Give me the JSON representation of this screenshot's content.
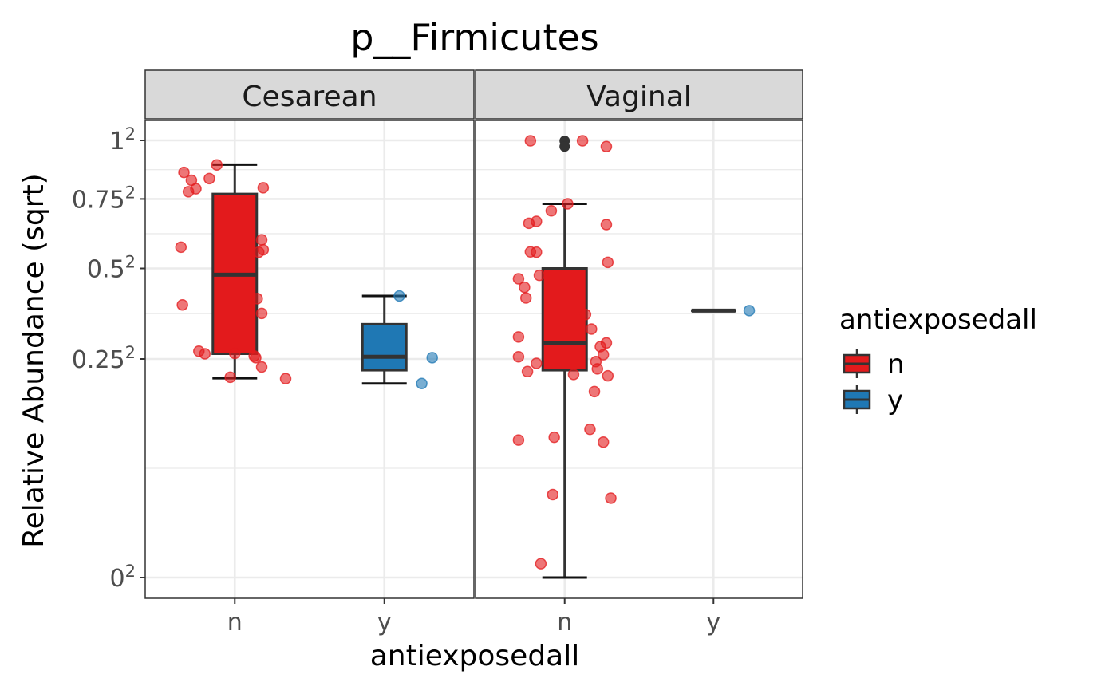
{
  "chart_data": {
    "type": "box",
    "title": "p__Firmicutes",
    "xlabel": "antiexposedall",
    "ylabel": "Relative Abundance (sqrt)",
    "y_scale": "sqrt",
    "ylim": [
      0,
      1.0
    ],
    "grid": true,
    "y_ticks": [
      {
        "value": 0,
        "base": "0",
        "exp": "2"
      },
      {
        "value": 0.25,
        "base": "0.25",
        "exp": "2"
      },
      {
        "value": 0.5,
        "base": "0.5",
        "exp": "2"
      },
      {
        "value": 0.75,
        "base": "0.75",
        "exp": "2"
      },
      {
        "value": 1.0,
        "base": "1",
        "exp": "2"
      }
    ],
    "categories": [
      "n",
      "y"
    ],
    "colors": {
      "n": "#e31a1c",
      "y": "#1f78b4"
    },
    "legend": {
      "title": "antiexposedall",
      "placement": "right",
      "items": [
        "n",
        "y"
      ]
    },
    "facets": [
      {
        "label": "Cesarean",
        "boxes": [
          {
            "category": "n",
            "min": 0.208,
            "q1": 0.262,
            "median": 0.48,
            "q3": 0.77,
            "max": 0.892,
            "outliers": []
          },
          {
            "category": "y",
            "min": 0.197,
            "q1": 0.225,
            "median": 0.255,
            "q3": 0.336,
            "max": 0.415,
            "outliers": []
          }
        ],
        "points": [
          {
            "category": "n",
            "x": 0.88,
            "y": 0.891
          },
          {
            "category": "n",
            "x": 0.66,
            "y": 0.859
          },
          {
            "category": "n",
            "x": 0.83,
            "y": 0.833
          },
          {
            "category": "n",
            "x": 0.71,
            "y": 0.826
          },
          {
            "category": "n",
            "x": 1.19,
            "y": 0.795
          },
          {
            "category": "n",
            "x": 0.74,
            "y": 0.791
          },
          {
            "category": "n",
            "x": 0.69,
            "y": 0.779
          },
          {
            "category": "n",
            "x": 0.64,
            "y": 0.571
          },
          {
            "category": "n",
            "x": 1.18,
            "y": 0.597
          },
          {
            "category": "n",
            "x": 1.19,
            "y": 0.562
          },
          {
            "category": "n",
            "x": 1.16,
            "y": 0.554
          },
          {
            "category": "n",
            "x": 1.15,
            "y": 0.407
          },
          {
            "category": "n",
            "x": 0.65,
            "y": 0.389
          },
          {
            "category": "n",
            "x": 1.18,
            "y": 0.365
          },
          {
            "category": "n",
            "x": 0.76,
            "y": 0.268
          },
          {
            "category": "n",
            "x": 0.8,
            "y": 0.262
          },
          {
            "category": "n",
            "x": 1.0,
            "y": 0.263
          },
          {
            "category": "n",
            "x": 1.13,
            "y": 0.257
          },
          {
            "category": "n",
            "x": 1.14,
            "y": 0.253
          },
          {
            "category": "n",
            "x": 1.18,
            "y": 0.232
          },
          {
            "category": "n",
            "x": 0.97,
            "y": 0.21
          },
          {
            "category": "n",
            "x": 1.34,
            "y": 0.207
          },
          {
            "category": "y",
            "x": 2.1,
            "y": 0.415
          },
          {
            "category": "y",
            "x": 2.32,
            "y": 0.253
          },
          {
            "category": "y",
            "x": 2.25,
            "y": 0.197
          }
        ]
      },
      {
        "label": "Vaginal",
        "boxes": [
          {
            "category": "n",
            "min": 0.0,
            "q1": 0.225,
            "median": 0.288,
            "q3": 0.5,
            "max": 0.731,
            "outliers": [
              0.998,
              0.972
            ]
          },
          {
            "category": "y",
            "min": 0.373,
            "q1": 0.373,
            "median": 0.373,
            "q3": 0.373,
            "max": 0.373,
            "outliers": []
          }
        ],
        "points": [
          {
            "category": "n",
            "x": 0.77,
            "y": 0.998
          },
          {
            "category": "n",
            "x": 1.12,
            "y": 0.998
          },
          {
            "category": "n",
            "x": 1.28,
            "y": 0.972
          },
          {
            "category": "n",
            "x": 1.02,
            "y": 0.731
          },
          {
            "category": "n",
            "x": 0.91,
            "y": 0.704
          },
          {
            "category": "n",
            "x": 0.81,
            "y": 0.664
          },
          {
            "category": "n",
            "x": 0.76,
            "y": 0.657
          },
          {
            "category": "n",
            "x": 1.28,
            "y": 0.652
          },
          {
            "category": "n",
            "x": 0.77,
            "y": 0.555
          },
          {
            "category": "n",
            "x": 0.81,
            "y": 0.554
          },
          {
            "category": "n",
            "x": 1.29,
            "y": 0.52
          },
          {
            "category": "n",
            "x": 0.83,
            "y": 0.478
          },
          {
            "category": "n",
            "x": 0.69,
            "y": 0.467
          },
          {
            "category": "n",
            "x": 0.73,
            "y": 0.441
          },
          {
            "category": "n",
            "x": 0.74,
            "y": 0.409
          },
          {
            "category": "n",
            "x": 1.14,
            "y": 0.362
          },
          {
            "category": "n",
            "x": 1.18,
            "y": 0.323
          },
          {
            "category": "n",
            "x": 0.69,
            "y": 0.303
          },
          {
            "category": "n",
            "x": 1.28,
            "y": 0.288
          },
          {
            "category": "n",
            "x": 1.24,
            "y": 0.279
          },
          {
            "category": "n",
            "x": 1.26,
            "y": 0.26
          },
          {
            "category": "n",
            "x": 0.69,
            "y": 0.255
          },
          {
            "category": "n",
            "x": 0.81,
            "y": 0.24
          },
          {
            "category": "n",
            "x": 1.21,
            "y": 0.244
          },
          {
            "category": "n",
            "x": 1.22,
            "y": 0.228
          },
          {
            "category": "n",
            "x": 0.75,
            "y": 0.222
          },
          {
            "category": "n",
            "x": 1.06,
            "y": 0.216
          },
          {
            "category": "n",
            "x": 1.29,
            "y": 0.213
          },
          {
            "category": "n",
            "x": 1.2,
            "y": 0.181
          },
          {
            "category": "n",
            "x": 1.17,
            "y": 0.115
          },
          {
            "category": "n",
            "x": 0.93,
            "y": 0.103
          },
          {
            "category": "n",
            "x": 1.26,
            "y": 0.096
          },
          {
            "category": "n",
            "x": 0.69,
            "y": 0.099
          },
          {
            "category": "n",
            "x": 0.92,
            "y": 0.036
          },
          {
            "category": "n",
            "x": 1.31,
            "y": 0.033
          },
          {
            "category": "n",
            "x": 0.84,
            "y": 0.001
          },
          {
            "category": "y",
            "x": 2.24,
            "y": 0.373
          }
        ]
      }
    ]
  }
}
